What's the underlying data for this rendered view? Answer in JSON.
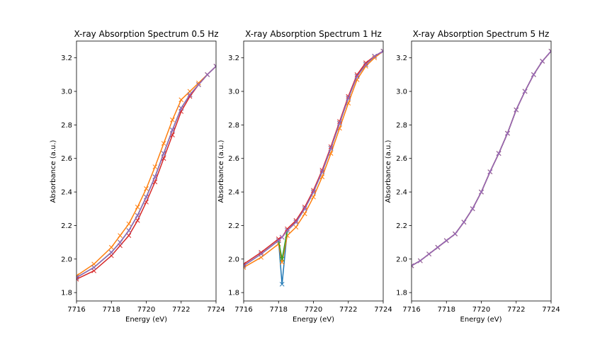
{
  "chart_data": [
    {
      "type": "line",
      "title": "X-ray Absorption Spectrum 0.5 Hz",
      "xlabel": "Energy (eV)",
      "ylabel": "Absorbance (a.u.)",
      "xlim": [
        7716,
        7724
      ],
      "ylim": [
        1.75,
        3.3
      ],
      "xticks": [
        7716,
        7718,
        7720,
        7722,
        7724
      ],
      "yticks": [
        1.8,
        2.0,
        2.2,
        2.4,
        2.6,
        2.8,
        3.0,
        3.2
      ],
      "marker": "x",
      "x": [
        7716,
        7717,
        7718,
        7718.5,
        7719,
        7719.5,
        7720,
        7720.5,
        7721,
        7721.5,
        7722,
        7722.5,
        7723,
        7723.5,
        7724
      ],
      "series": [
        {
          "color": "#1f77b4",
          "values": [
            1.89,
            1.95,
            2.04,
            2.1,
            2.17,
            2.26,
            2.37,
            2.49,
            2.63,
            2.77,
            2.9,
            2.98,
            3.04,
            3.1,
            3.15
          ]
        },
        {
          "color": "#ff7f0e",
          "values": [
            1.9,
            1.97,
            2.07,
            2.14,
            2.21,
            2.31,
            2.42,
            2.55,
            2.69,
            2.83,
            2.95,
            3.0,
            3.05,
            3.1,
            3.15
          ]
        },
        {
          "color": "#2ca02c",
          "values": [
            1.89,
            1.95,
            2.04,
            2.1,
            2.17,
            2.26,
            2.37,
            2.49,
            2.63,
            2.77,
            2.9,
            2.98,
            3.04,
            3.1,
            3.15
          ]
        },
        {
          "color": "#d62728",
          "values": [
            1.88,
            1.93,
            2.02,
            2.08,
            2.14,
            2.23,
            2.34,
            2.46,
            2.6,
            2.74,
            2.88,
            2.97,
            3.04,
            3.1,
            3.15
          ]
        },
        {
          "color": "#9467bd",
          "values": [
            1.89,
            1.95,
            2.04,
            2.1,
            2.17,
            2.26,
            2.37,
            2.49,
            2.63,
            2.77,
            2.9,
            2.98,
            3.04,
            3.1,
            3.15
          ]
        }
      ]
    },
    {
      "type": "line",
      "title": "X-ray Absorption Spectrum 1 Hz",
      "xlabel": "Energy (eV)",
      "ylabel": "Absorbance (a.u.)",
      "xlim": [
        7716,
        7724
      ],
      "ylim": [
        1.75,
        3.3
      ],
      "xticks": [
        7716,
        7718,
        7720,
        7722,
        7724
      ],
      "yticks": [
        1.8,
        2.0,
        2.2,
        2.4,
        2.6,
        2.8,
        3.0,
        3.2
      ],
      "marker": "x",
      "x": [
        7716,
        7717,
        7718,
        7718.2,
        7718.5,
        7719,
        7719.5,
        7720,
        7720.5,
        7721,
        7721.5,
        7722,
        7722.5,
        7723,
        7723.5,
        7724
      ],
      "series": [
        {
          "color": "#1f77b4",
          "values": [
            1.96,
            2.03,
            2.11,
            1.85,
            2.17,
            2.22,
            2.3,
            2.4,
            2.52,
            2.66,
            2.81,
            2.96,
            3.09,
            3.16,
            3.21,
            3.24
          ]
        },
        {
          "color": "#ff7f0e",
          "values": [
            1.95,
            2.01,
            2.09,
            1.98,
            2.14,
            2.19,
            2.27,
            2.37,
            2.49,
            2.63,
            2.78,
            2.93,
            3.07,
            3.15,
            3.2,
            3.24
          ]
        },
        {
          "color": "#2ca02c",
          "values": [
            1.96,
            2.03,
            2.11,
            2.0,
            2.17,
            2.22,
            2.3,
            2.4,
            2.52,
            2.66,
            2.81,
            2.96,
            3.09,
            3.16,
            3.21,
            3.24
          ]
        },
        {
          "color": "#d62728",
          "values": [
            1.97,
            2.04,
            2.12,
            2.13,
            2.18,
            2.23,
            2.31,
            2.41,
            2.53,
            2.67,
            2.82,
            2.97,
            3.1,
            3.17,
            3.21,
            3.24
          ]
        },
        {
          "color": "#9467bd",
          "values": [
            1.96,
            2.03,
            2.11,
            2.13,
            2.17,
            2.22,
            2.3,
            2.4,
            2.52,
            2.66,
            2.81,
            2.96,
            3.09,
            3.16,
            3.21,
            3.24
          ]
        }
      ]
    },
    {
      "type": "line",
      "title": "X-ray Absorption Spectrum 5 Hz",
      "xlabel": "Energy (eV)",
      "ylabel": "Absorbance (a.u.)",
      "xlim": [
        7716,
        7724
      ],
      "ylim": [
        1.75,
        3.3
      ],
      "xticks": [
        7716,
        7718,
        7720,
        7722,
        7724
      ],
      "yticks": [
        1.8,
        2.0,
        2.2,
        2.4,
        2.6,
        2.8,
        3.0,
        3.2
      ],
      "marker": "x",
      "x": [
        7716,
        7716.5,
        7717,
        7717.5,
        7718,
        7718.5,
        7719,
        7719.5,
        7720,
        7720.5,
        7721,
        7721.5,
        7722,
        7722.5,
        7723,
        7723.5,
        7724
      ],
      "series": [
        {
          "color": "#1f77b4",
          "values": [
            1.96,
            1.99,
            2.03,
            2.07,
            2.11,
            2.15,
            2.22,
            2.3,
            2.4,
            2.52,
            2.63,
            2.75,
            2.89,
            3.0,
            3.1,
            3.18,
            3.24
          ]
        },
        {
          "color": "#ff7f0e",
          "values": [
            1.96,
            1.99,
            2.03,
            2.07,
            2.11,
            2.15,
            2.22,
            2.3,
            2.4,
            2.52,
            2.63,
            2.75,
            2.89,
            3.0,
            3.1,
            3.18,
            3.24
          ]
        },
        {
          "color": "#2ca02c",
          "values": [
            1.96,
            1.99,
            2.03,
            2.07,
            2.11,
            2.15,
            2.22,
            2.3,
            2.4,
            2.52,
            2.63,
            2.75,
            2.89,
            3.0,
            3.1,
            3.18,
            3.24
          ]
        },
        {
          "color": "#d62728",
          "values": [
            1.96,
            1.99,
            2.03,
            2.07,
            2.11,
            2.15,
            2.22,
            2.3,
            2.4,
            2.52,
            2.63,
            2.75,
            2.89,
            3.0,
            3.1,
            3.18,
            3.24
          ]
        },
        {
          "color": "#9467bd",
          "values": [
            1.96,
            1.99,
            2.03,
            2.07,
            2.11,
            2.15,
            2.22,
            2.3,
            2.4,
            2.52,
            2.63,
            2.75,
            2.89,
            3.0,
            3.1,
            3.18,
            3.24
          ]
        }
      ]
    }
  ]
}
